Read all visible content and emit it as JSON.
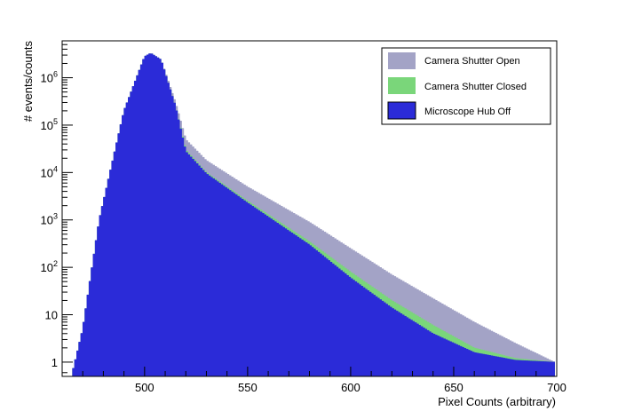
{
  "chart_data": {
    "type": "histogram",
    "title": "",
    "xlabel": "Pixel Counts (arbitrary)",
    "ylabel": "# events/counts",
    "xlim": [
      460,
      700
    ],
    "ylim": [
      0.5,
      6000000
    ],
    "yscale": "log",
    "bin_width": 1,
    "grid": false,
    "legend_position": "top-right",
    "x_ticks": [
      500,
      550,
      600,
      650,
      700
    ],
    "y_ticks": [
      {
        "value": 1,
        "base": "1",
        "exp": ""
      },
      {
        "value": 10,
        "base": "10",
        "exp": ""
      },
      {
        "value": 100,
        "base": "10",
        "exp": "2"
      },
      {
        "value": 1000,
        "base": "10",
        "exp": "3"
      },
      {
        "value": 10000,
        "base": "10",
        "exp": "4"
      },
      {
        "value": 100000,
        "base": "10",
        "exp": "5"
      },
      {
        "value": 1000000,
        "base": "10",
        "exp": "6"
      }
    ],
    "series": [
      {
        "name": "Camera Shutter Open",
        "color": "#a3a3c6",
        "peak": {
          "x": 503,
          "y": 3300000
        },
        "knots": [
          [
            465,
            0.6
          ],
          [
            470,
            5
          ],
          [
            478,
            1000
          ],
          [
            490,
            200000
          ],
          [
            500,
            2800000
          ],
          [
            503,
            3300000
          ],
          [
            508,
            2400000
          ],
          [
            515,
            300000
          ],
          [
            520,
            50000
          ],
          [
            530,
            18000
          ],
          [
            550,
            5000
          ],
          [
            580,
            900
          ],
          [
            600,
            250
          ],
          [
            620,
            70
          ],
          [
            640,
            22
          ],
          [
            660,
            7
          ],
          [
            680,
            2.5
          ],
          [
            699,
            1
          ]
        ]
      },
      {
        "name": "Camera Shutter Closed",
        "color": "#7ad67a",
        "peak": {
          "x": 503,
          "y": 3300000
        },
        "knots": [
          [
            465,
            0.6
          ],
          [
            470,
            5
          ],
          [
            478,
            1000
          ],
          [
            490,
            200000
          ],
          [
            500,
            2800000
          ],
          [
            503,
            3300000
          ],
          [
            508,
            2400000
          ],
          [
            515,
            250000
          ],
          [
            520,
            30000
          ],
          [
            530,
            10000
          ],
          [
            550,
            2500
          ],
          [
            580,
            350
          ],
          [
            600,
            80
          ],
          [
            620,
            20
          ],
          [
            640,
            6
          ],
          [
            660,
            2
          ],
          [
            680,
            1.2
          ],
          [
            699,
            1
          ]
        ]
      },
      {
        "name": "Microscope Hub Off",
        "color": "#2b2bd8",
        "peak": {
          "x": 503,
          "y": 3300000
        },
        "knots": [
          [
            465,
            0.6
          ],
          [
            470,
            5
          ],
          [
            478,
            1000
          ],
          [
            490,
            200000
          ],
          [
            500,
            2800000
          ],
          [
            503,
            3300000
          ],
          [
            508,
            2400000
          ],
          [
            515,
            250000
          ],
          [
            520,
            28000
          ],
          [
            530,
            9500
          ],
          [
            550,
            2300
          ],
          [
            580,
            300
          ],
          [
            600,
            60
          ],
          [
            620,
            14
          ],
          [
            640,
            4
          ],
          [
            660,
            1.6
          ],
          [
            680,
            1.1
          ],
          [
            699,
            1
          ]
        ]
      }
    ]
  }
}
